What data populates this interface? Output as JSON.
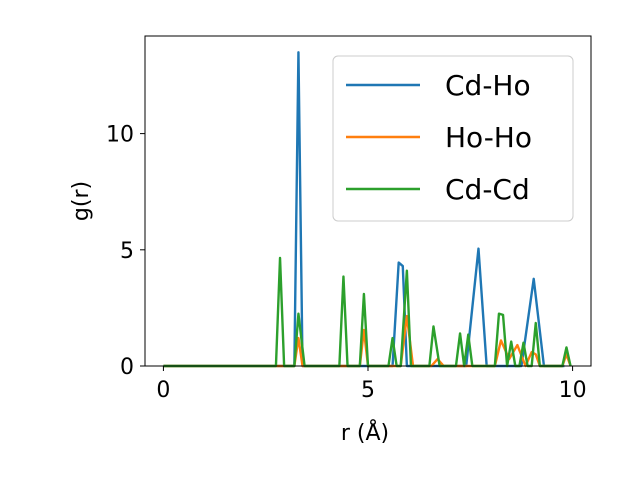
{
  "chart_data": {
    "type": "line",
    "xlabel": "r (Å)",
    "ylabel": "g(r)",
    "xlim": [
      -0.45,
      10.45
    ],
    "ylim": [
      0,
      14.2
    ],
    "xticks": [
      0,
      5,
      10
    ],
    "yticks": [
      0,
      5,
      10
    ],
    "grid": false,
    "legend_position": "top-right",
    "series": [
      {
        "name": "Cd-Ho",
        "color": "#1f77b4",
        "x": [
          0,
          3.2,
          3.3,
          3.4,
          5.6,
          5.75,
          5.85,
          5.95,
          7.4,
          7.7,
          7.9,
          8.75,
          9.05,
          9.3,
          9.8
        ],
        "y": [
          0,
          0,
          13.5,
          0,
          0,
          4.45,
          4.3,
          0,
          0,
          5.05,
          0,
          0,
          3.75,
          0,
          0
        ]
      },
      {
        "name": "Ho-Ho",
        "color": "#ff7f0e",
        "x": [
          0,
          3.2,
          3.3,
          3.4,
          4.8,
          4.9,
          5.0,
          5.8,
          5.95,
          6.1,
          6.55,
          6.7,
          6.85,
          8.1,
          8.25,
          8.45,
          8.65,
          8.85,
          9.0,
          9.1,
          9.2,
          9.75,
          9.85,
          9.95
        ],
        "y": [
          0,
          0,
          1.2,
          0,
          0,
          1.55,
          0,
          0,
          2.15,
          0,
          0,
          0.3,
          0,
          0,
          1.1,
          0.3,
          0.9,
          0,
          0.6,
          0.5,
          0,
          0,
          0.5,
          0
        ]
      },
      {
        "name": "Cd-Cd",
        "color": "#2ca02c",
        "x": [
          0,
          2.75,
          2.85,
          2.95,
          3.2,
          3.3,
          3.45,
          4.3,
          4.4,
          4.5,
          4.8,
          4.9,
          5.0,
          5.5,
          5.6,
          5.7,
          5.8,
          5.95,
          6.05,
          6.5,
          6.6,
          6.75,
          7.15,
          7.25,
          7.35,
          7.45,
          7.55,
          8.1,
          8.2,
          8.3,
          8.4,
          8.5,
          8.6,
          8.7,
          8.8,
          8.9,
          9.0,
          9.1,
          9.2,
          9.3,
          9.75,
          9.85,
          9.95
        ],
        "y": [
          0,
          0,
          4.65,
          0,
          0,
          2.25,
          0,
          0,
          3.85,
          0,
          0,
          3.1,
          0,
          0,
          1.2,
          0,
          0,
          4.1,
          0,
          0,
          1.7,
          0,
          0,
          1.4,
          0,
          1.35,
          0,
          0,
          2.25,
          2.2,
          0,
          1.05,
          0,
          0,
          1.0,
          0,
          0,
          1.85,
          0,
          0,
          0,
          0.8,
          0
        ]
      }
    ]
  }
}
